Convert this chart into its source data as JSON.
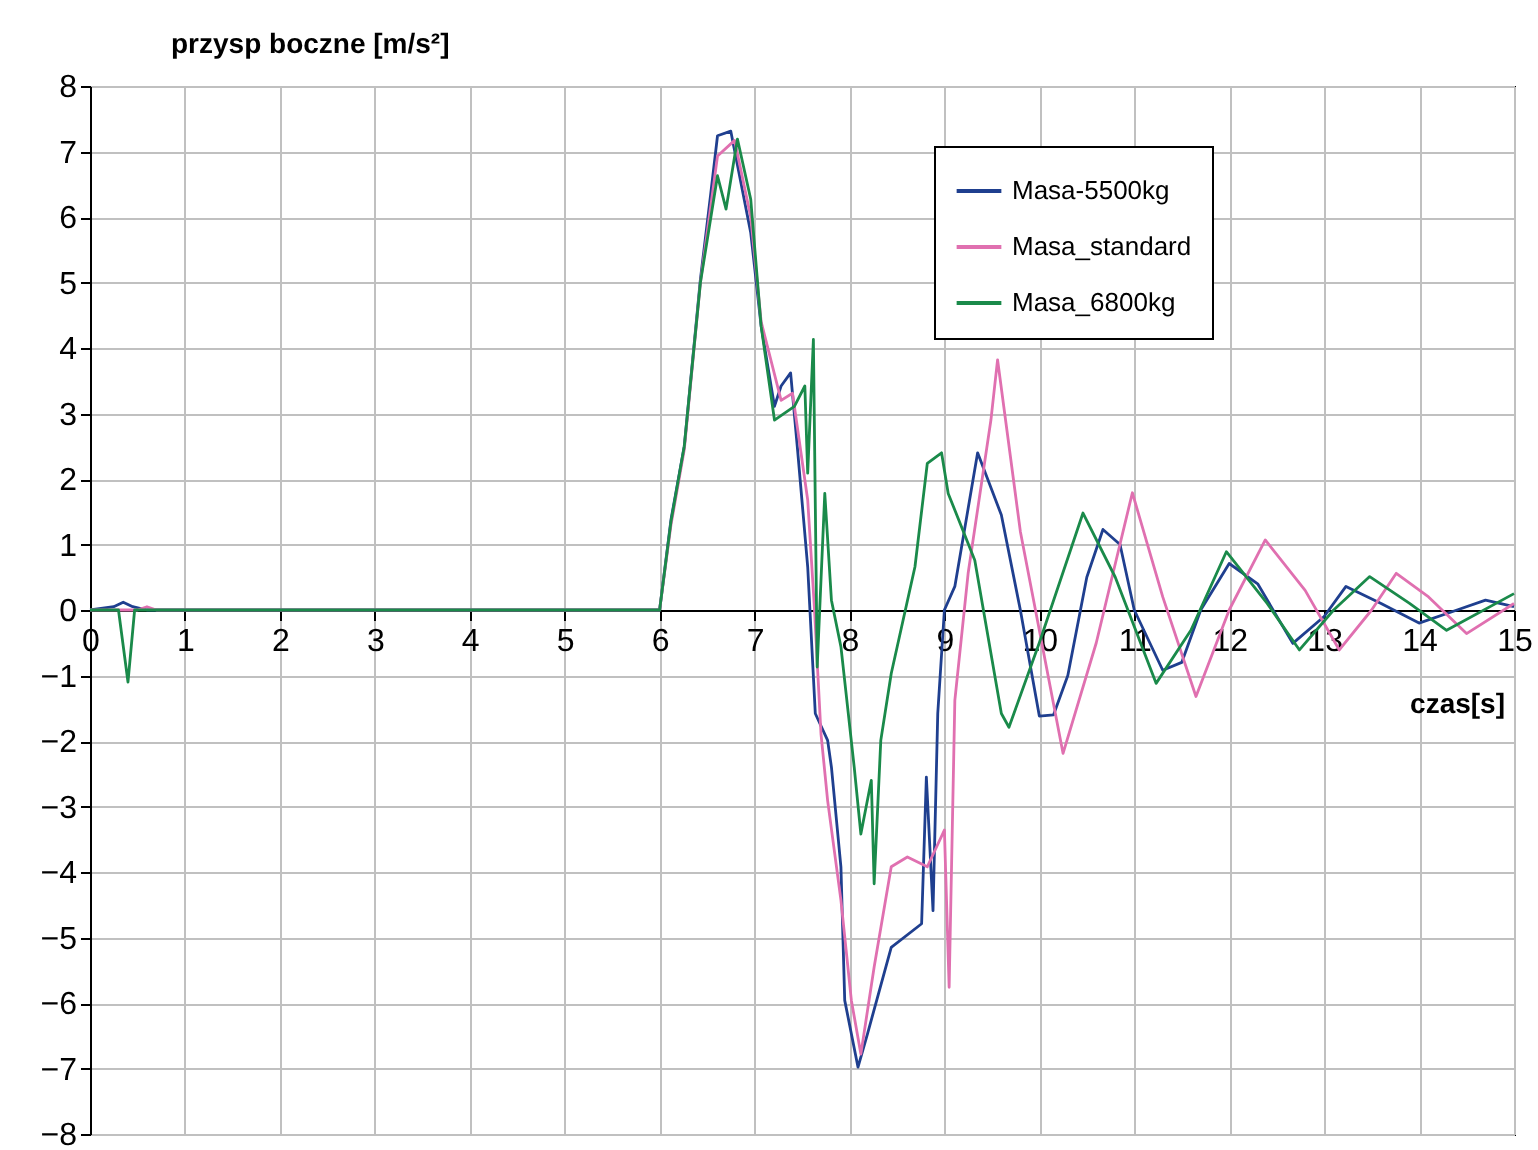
{
  "chart_data": {
    "type": "line",
    "xlabel": "czas[s]",
    "ylabel": "przysp boczne [m/s²]",
    "xlim": [
      0,
      15
    ],
    "xticks": [
      0,
      1,
      2,
      3,
      4,
      5,
      6,
      7,
      8,
      9,
      10,
      11,
      12,
      13,
      14,
      15
    ],
    "ylim": [
      -8,
      8
    ],
    "yticks": [
      -8,
      -7,
      -6,
      -5,
      -4,
      -3,
      -2,
      -1,
      0,
      1,
      2,
      3,
      4,
      5,
      6,
      7,
      8
    ],
    "grid": true,
    "legend": "top right",
    "marker": "none",
    "line_style": "solid",
    "series": [
      {
        "name": "Masa-5500kg",
        "color": "#1f3f8f",
        "x": [
          0,
          0.25,
          0.35,
          0.45,
          0.6,
          6.0,
          6.12,
          6.26,
          6.43,
          6.54,
          6.61,
          6.75,
          6.96,
          7.07,
          7.21,
          7.28,
          7.38,
          7.45,
          7.56,
          7.64,
          7.77,
          7.81,
          7.91,
          7.95,
          8.09,
          8.19,
          8.44,
          8.76,
          8.81,
          8.88,
          8.93,
          9.0,
          9.11,
          9.35,
          9.6,
          9.8,
          10.0,
          10.15,
          10.3,
          10.5,
          10.67,
          10.85,
          11.0,
          11.3,
          11.5,
          11.7,
          12.0,
          12.3,
          12.67,
          13.0,
          13.23,
          13.6,
          14.0,
          14.4,
          14.7,
          15
        ],
        "values": [
          0,
          0.05,
          0.12,
          0.05,
          0,
          0,
          1.38,
          2.5,
          5.05,
          6.37,
          7.24,
          7.31,
          5.76,
          4.33,
          3.11,
          3.42,
          3.62,
          2.5,
          0.66,
          -1.58,
          -1.99,
          -2.4,
          -3.92,
          -5.96,
          -6.98,
          -6.47,
          -5.15,
          -4.79,
          -2.55,
          -4.59,
          -1.58,
          0,
          0.36,
          2.4,
          1.45,
          0,
          -1.62,
          -1.6,
          -1.0,
          0.5,
          1.23,
          1.0,
          0,
          -0.92,
          -0.8,
          0,
          0.71,
          0.4,
          -0.51,
          -0.1,
          0.36,
          0.1,
          -0.2,
          0,
          0.15,
          0.05
        ]
      },
      {
        "name": "Masa_standard",
        "color": "#e070b0",
        "x": [
          0,
          0.5,
          0.6,
          0.7,
          6.0,
          6.12,
          6.26,
          6.43,
          6.61,
          6.79,
          6.96,
          7.07,
          7.28,
          7.4,
          7.56,
          7.63,
          7.7,
          7.77,
          7.91,
          8.02,
          8.12,
          8.26,
          8.44,
          8.61,
          8.82,
          9.0,
          9.05,
          9.11,
          9.25,
          9.49,
          9.56,
          9.8,
          10.25,
          10.6,
          10.98,
          11.3,
          11.65,
          12.0,
          12.38,
          12.8,
          13.16,
          13.5,
          13.76,
          14.1,
          14.5,
          15
        ],
        "values": [
          0,
          0,
          0.05,
          0,
          0,
          1.3,
          2.45,
          5.0,
          6.93,
          7.17,
          6.0,
          4.4,
          3.2,
          3.31,
          1.68,
          0.05,
          -1.89,
          -2.91,
          -4.43,
          -5.96,
          -6.78,
          -5.45,
          -3.92,
          -3.77,
          -3.92,
          -3.36,
          -5.76,
          -1.38,
          0.56,
          2.9,
          3.82,
          1.2,
          -2.19,
          -0.5,
          1.79,
          0.2,
          -1.32,
          0,
          1.07,
          0.3,
          -0.61,
          0,
          0.56,
          0.2,
          -0.36,
          0.1
        ]
      },
      {
        "name": "Masa_6800kg",
        "color": "#1a8a4a",
        "x": [
          0,
          0.3,
          0.4,
          0.47,
          0.55,
          6.0,
          6.12,
          6.26,
          6.43,
          6.61,
          6.7,
          6.82,
          6.96,
          7.07,
          7.21,
          7.42,
          7.53,
          7.56,
          7.62,
          7.66,
          7.74,
          7.81,
          7.91,
          8.05,
          8.12,
          8.23,
          8.26,
          8.33,
          8.44,
          8.69,
          8.82,
          8.97,
          9.04,
          9.32,
          9.6,
          9.68,
          10.0,
          10.46,
          10.8,
          11.23,
          11.6,
          11.97,
          12.4,
          12.74,
          13.1,
          13.48,
          13.9,
          14.29,
          15
        ],
        "values": [
          0,
          0,
          -1.1,
          0,
          0,
          0,
          1.35,
          2.5,
          5.0,
          6.63,
          6.12,
          7.19,
          6.27,
          4.33,
          2.9,
          3.11,
          3.42,
          2.09,
          4.13,
          -0.87,
          1.78,
          0.15,
          -0.56,
          -2.4,
          -3.42,
          -2.6,
          -4.18,
          -1.99,
          -0.97,
          0.66,
          2.24,
          2.4,
          1.78,
          0.76,
          -1.58,
          -1.79,
          -0.5,
          1.48,
          0.5,
          -1.12,
          -0.3,
          0.89,
          0.1,
          -0.61,
          0,
          0.51,
          0.1,
          -0.31,
          0.25
        ]
      }
    ]
  }
}
